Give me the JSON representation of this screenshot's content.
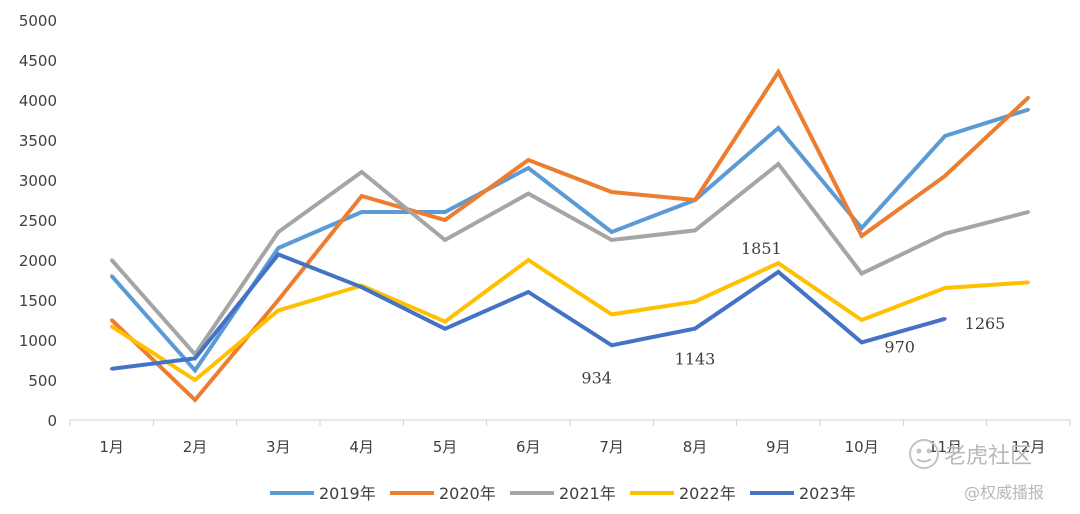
{
  "chart_data": {
    "type": "line",
    "categories": [
      "1月",
      "2月",
      "3月",
      "4月",
      "5月",
      "6月",
      "7月",
      "8月",
      "9月",
      "10月",
      "11月",
      "12月"
    ],
    "ylim": [
      0,
      5000
    ],
    "yticks": [
      0,
      500,
      1000,
      1500,
      2000,
      2500,
      3000,
      3500,
      4000,
      4500,
      5000
    ],
    "grid": false,
    "legend_position": "bottom",
    "series": [
      {
        "name": "2019年",
        "color": "#5B9BD5",
        "values": [
          1800,
          620,
          2150,
          2600,
          2600,
          3150,
          2350,
          2750,
          3650,
          2400,
          3550,
          3880
        ]
      },
      {
        "name": "2020年",
        "color": "#ED7D31",
        "values": [
          1250,
          250,
          1500,
          2800,
          2500,
          3250,
          2850,
          2750,
          4350,
          2300,
          3050,
          4030
        ]
      },
      {
        "name": "2021年",
        "color": "#A5A5A5",
        "values": [
          2000,
          820,
          2350,
          3100,
          2250,
          2830,
          2250,
          2370,
          3200,
          1830,
          2330,
          2600
        ]
      },
      {
        "name": "2022年",
        "color": "#FFC000",
        "values": [
          1170,
          500,
          1370,
          1680,
          1230,
          2000,
          1320,
          1480,
          1960,
          1250,
          1650,
          1720
        ]
      },
      {
        "name": "2023年",
        "color": "#4472C4",
        "values": [
          640,
          770,
          2070,
          1660,
          1140,
          1600,
          934,
          1143,
          1851,
          970,
          1265,
          null
        ]
      }
    ],
    "annotations": [
      {
        "series": "2023年",
        "index": 6,
        "text": "934",
        "dx": -15,
        "dy": 32
      },
      {
        "series": "2023年",
        "index": 7,
        "text": "1143",
        "dx": 0,
        "dy": 30
      },
      {
        "series": "2023年",
        "index": 8,
        "text": "1851",
        "dx": -17,
        "dy": -24
      },
      {
        "series": "2023年",
        "index": 9,
        "text": "970",
        "dx": 38,
        "dy": 4
      },
      {
        "series": "2023年",
        "index": 10,
        "text": "1265",
        "dx": 40,
        "dy": 4
      }
    ]
  },
  "watermarks": {
    "logo_text": "老虎社区",
    "author_text": "@权威播报"
  }
}
